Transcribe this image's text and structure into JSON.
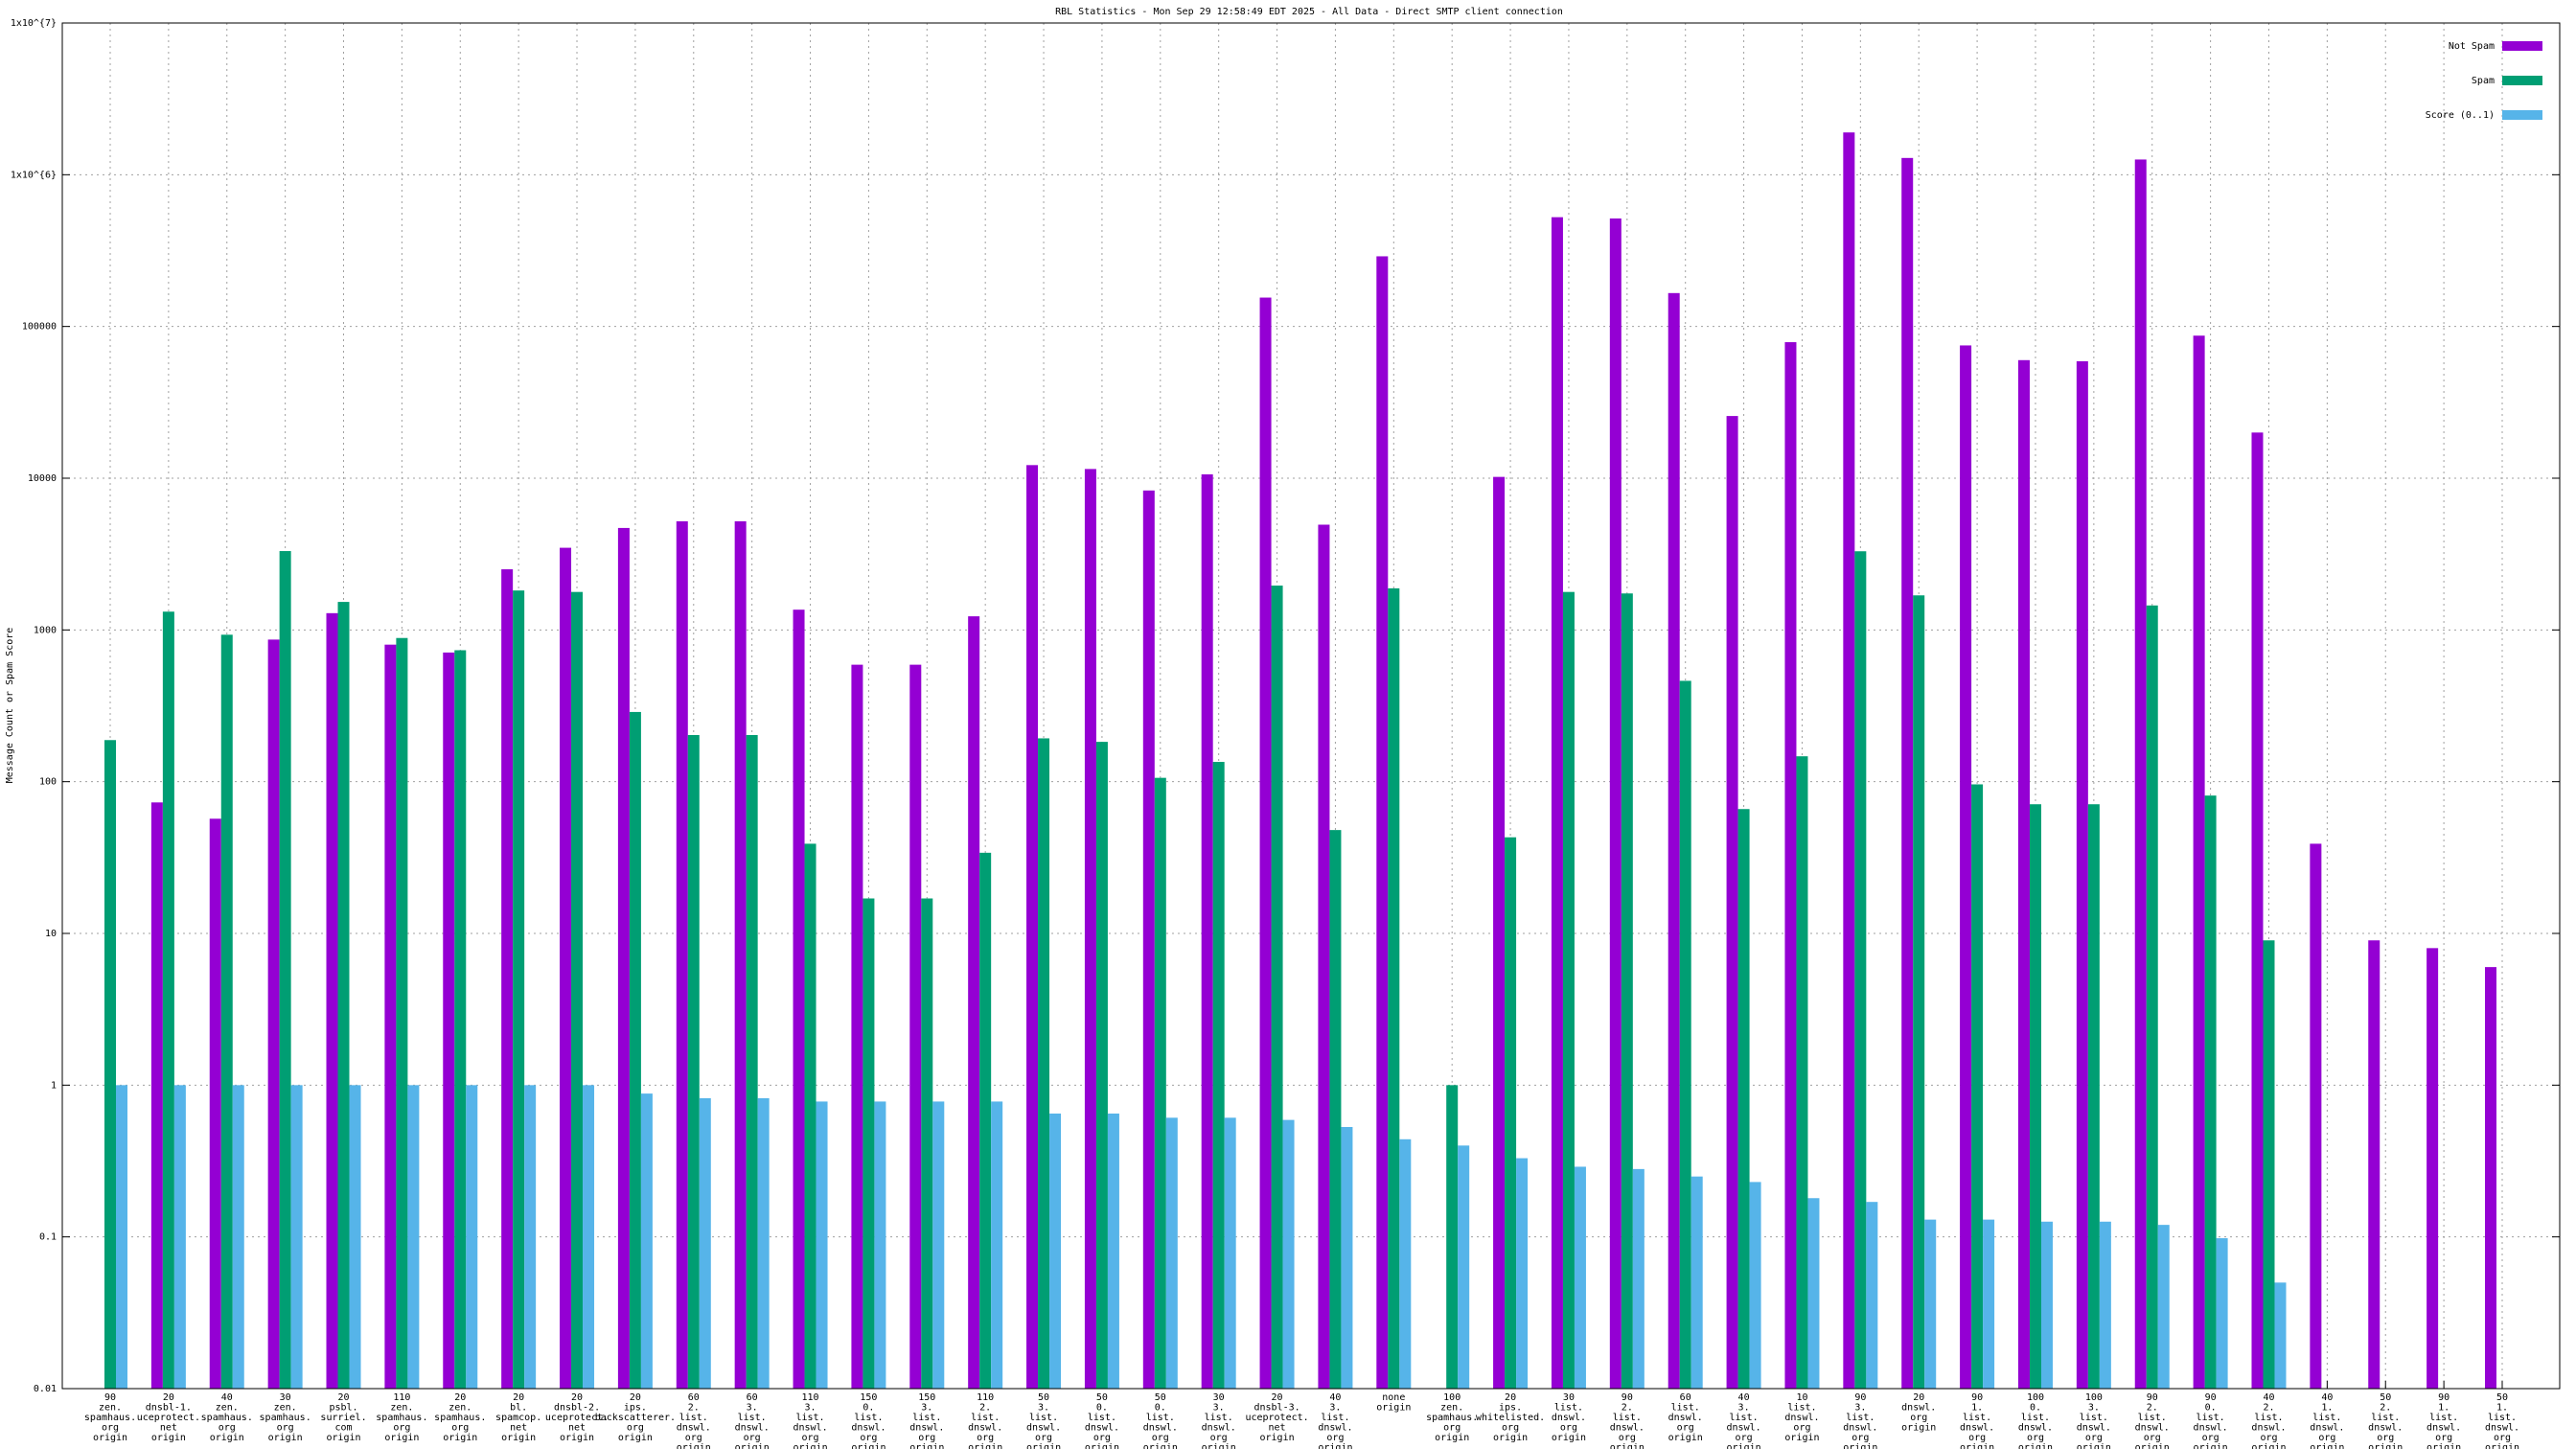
{
  "chart_data": {
    "type": "bar",
    "title": "RBL Statistics - Mon Sep 29 12:58:49 EDT 2025 - All Data - Direct SMTP client connection",
    "y_label": "Message Count or Spam Score",
    "ylog": true,
    "grid": true,
    "legend": "top-right",
    "ylim": [
      0.01,
      10000000
    ],
    "yticks": [
      0.01,
      0.1,
      1,
      10,
      100,
      1000,
      10000,
      100000,
      {
        "value": 1000000,
        "label": "1x10^{6}"
      },
      {
        "value": 10000000,
        "label": "1x10^{7}"
      }
    ],
    "categories": [
      [
        "90",
        "zen.",
        "spamhaus.",
        "org",
        "origin"
      ],
      [
        "20",
        "dnsbl-1.",
        "uceprotect.",
        "net",
        "origin"
      ],
      [
        "40",
        "zen.",
        "spamhaus.",
        "org",
        "origin"
      ],
      [
        "30",
        "zen.",
        "spamhaus.",
        "org",
        "origin"
      ],
      [
        "20",
        "psbl.",
        "surriel.",
        "com",
        "origin"
      ],
      [
        "110",
        "zen.",
        "spamhaus.",
        "org",
        "origin"
      ],
      [
        "20",
        "zen.",
        "spamhaus.",
        "org",
        "origin"
      ],
      [
        "20",
        "bl.",
        "spamcop.",
        "net",
        "origin"
      ],
      [
        "20",
        "dnsbl-2.",
        "uceprotect.",
        "net",
        "origin"
      ],
      [
        "20",
        "ips.",
        "backscatterer.",
        "org",
        "origin"
      ],
      [
        "60",
        "2.",
        "list.",
        "dnswl.",
        "org",
        "origin"
      ],
      [
        "60",
        "3.",
        "list.",
        "dnswl.",
        "org",
        "origin"
      ],
      [
        "110",
        "3.",
        "list.",
        "dnswl.",
        "org",
        "origin"
      ],
      [
        "150",
        "0.",
        "list.",
        "dnswl.",
        "org",
        "origin"
      ],
      [
        "150",
        "3.",
        "list.",
        "dnswl.",
        "org",
        "origin"
      ],
      [
        "110",
        "2.",
        "list.",
        "dnswl.",
        "org",
        "origin"
      ],
      [
        "50",
        "3.",
        "list.",
        "dnswl.",
        "org",
        "origin"
      ],
      [
        "50",
        "0.",
        "list.",
        "dnswl.",
        "org",
        "origin"
      ],
      [
        "50",
        "0.",
        "list.",
        "dnswl.",
        "org",
        "origin"
      ],
      [
        "30",
        "3.",
        "list.",
        "dnswl.",
        "org",
        "origin"
      ],
      [
        "20",
        "dnsbl-3.",
        "uceprotect.",
        "net",
        "origin"
      ],
      [
        "40",
        "3.",
        "list.",
        "dnswl.",
        "org",
        "origin"
      ],
      [
        "none",
        "origin"
      ],
      [
        "100",
        "zen.",
        "spamhaus.",
        "org",
        "origin"
      ],
      [
        "20",
        "ips.",
        "whitelisted.",
        "org",
        "origin"
      ],
      [
        "30",
        "list.",
        "dnswl.",
        "org",
        "origin"
      ],
      [
        "90",
        "2.",
        "list.",
        "dnswl.",
        "org",
        "origin"
      ],
      [
        "60",
        "list.",
        "dnswl.",
        "org",
        "origin"
      ],
      [
        "40",
        "3.",
        "list.",
        "dnswl.",
        "org",
        "origin"
      ],
      [
        "10",
        "list.",
        "dnswl.",
        "org",
        "origin"
      ],
      [
        "90",
        "3.",
        "list.",
        "dnswl.",
        "org",
        "origin"
      ],
      [
        "20",
        "dnswl.",
        "org",
        "origin"
      ],
      [
        "90",
        "1.",
        "list.",
        "dnswl.",
        "org",
        "origin"
      ],
      [
        "100",
        "0.",
        "list.",
        "dnswl.",
        "org",
        "origin"
      ],
      [
        "100",
        "3.",
        "list.",
        "dnswl.",
        "org",
        "origin"
      ],
      [
        "90",
        "2.",
        "list.",
        "dnswl.",
        "org",
        "origin"
      ],
      [
        "90",
        "0.",
        "list.",
        "dnswl.",
        "org",
        "origin"
      ],
      [
        "40",
        "2.",
        "list.",
        "dnswl.",
        "org",
        "origin"
      ],
      [
        "40",
        "1.",
        "list.",
        "dnswl.",
        "org",
        "origin"
      ],
      [
        "50",
        "2.",
        "list.",
        "dnswl.",
        "org",
        "origin"
      ],
      [
        "90",
        "1.",
        "list.",
        "dnswl.",
        "org",
        "origin"
      ],
      [
        "50",
        "1.",
        "list.",
        "dnswl.",
        "org",
        "origin"
      ]
    ],
    "series": [
      {
        "name": "Not Spam",
        "color": "#9400d3",
        "values": [
          null,
          73,
          57,
          864,
          1290,
          800,
          710,
          2510,
          3480,
          4700,
          5200,
          5200,
          1360,
          590,
          590,
          1230,
          12200,
          11500,
          8300,
          10600,
          155000,
          4940,
          290000,
          null,
          10200,
          525000,
          515000,
          166000,
          25700,
          78800,
          1900000,
          1290000,
          75000,
          60000,
          59000,
          1260000,
          87000,
          20000,
          39,
          9,
          8,
          6
        ]
      },
      {
        "name": "Spam",
        "color": "#009e73",
        "values": [
          188,
          1320,
          930,
          3310,
          1530,
          885,
          735,
          1820,
          1780,
          288,
          203,
          203,
          39,
          17,
          17,
          34,
          193,
          183,
          106,
          135,
          1960,
          48,
          1880,
          1,
          43,
          1780,
          1740,
          462,
          66,
          147,
          3300,
          1690,
          96,
          71,
          71,
          1450,
          81,
          9,
          null,
          null,
          null,
          null
        ]
      },
      {
        "name": "Score (0..1)",
        "color": "#56b4e9",
        "values": [
          1,
          1,
          1,
          1,
          1,
          1,
          1,
          1,
          1,
          0.88,
          0.82,
          0.82,
          0.78,
          0.78,
          0.78,
          0.78,
          0.65,
          0.65,
          0.61,
          0.61,
          0.59,
          0.53,
          0.44,
          0.4,
          0.33,
          0.29,
          0.28,
          0.25,
          0.23,
          0.18,
          0.17,
          0.13,
          0.13,
          0.126,
          0.126,
          0.12,
          0.098,
          0.05,
          null,
          null,
          null,
          null
        ]
      }
    ]
  }
}
